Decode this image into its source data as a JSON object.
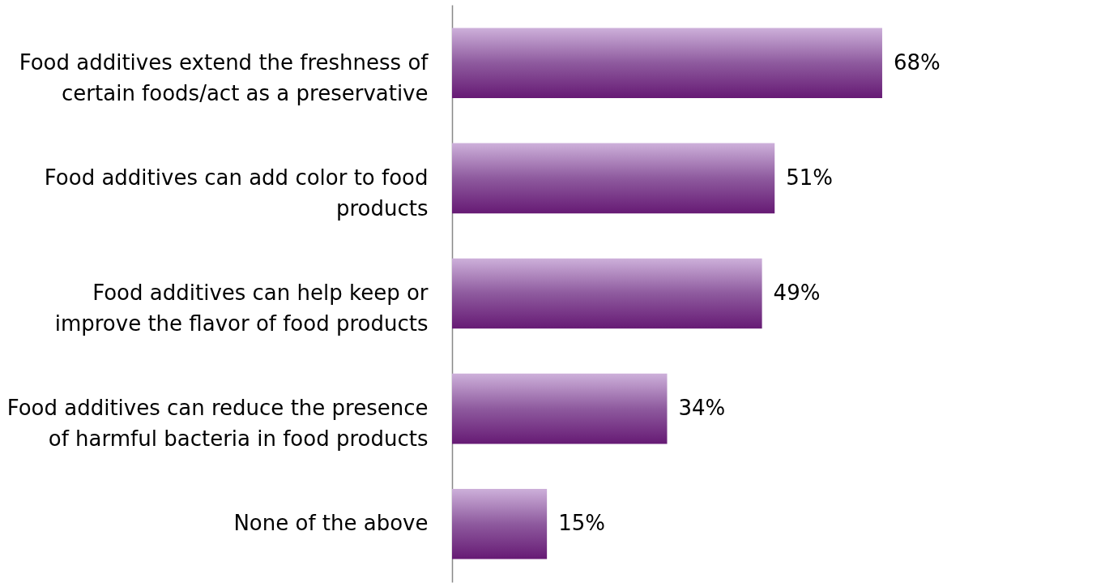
{
  "chart_data": {
    "type": "bar",
    "orientation": "horizontal",
    "categories": [
      "Food additives extend the freshness of certain foods/act as a preservative",
      "Food additives can add color to food products",
      "Food additives can help keep or improve the flavor of food products",
      "Food additives can reduce the presence of harmful bacteria in food products",
      "None of the above"
    ],
    "values": [
      68,
      51,
      49,
      34,
      15
    ],
    "value_labels": [
      "68%",
      "51%",
      "49%",
      "34%",
      "15%"
    ],
    "color": "#8e5a9e"
  }
}
